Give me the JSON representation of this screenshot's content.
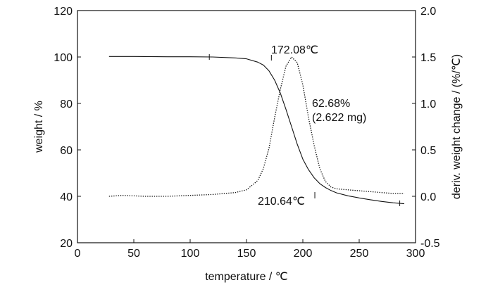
{
  "chart_data": {
    "type": "line",
    "xlabel": "temperature / ℃",
    "ylabel_left": "weight / %",
    "ylabel_right": "deriv. weight change / (%/℃)",
    "xlim": [
      0,
      300
    ],
    "ylim_left": [
      20,
      120
    ],
    "ylim_right": [
      -0.5,
      2.0
    ],
    "xticks": [
      0,
      50,
      100,
      150,
      200,
      250,
      300
    ],
    "yticks_left": [
      20,
      40,
      60,
      80,
      100,
      120
    ],
    "yticks_right": [
      "-0.5",
      "0.0",
      "0.5",
      "1.0",
      "1.5",
      "2.0"
    ],
    "grid": false,
    "series": [
      {
        "axis": "left",
        "style": "solid",
        "x": [
          28,
          50,
          80,
          100,
          120,
          140,
          150,
          160,
          165,
          170,
          175,
          180,
          185,
          190,
          195,
          200,
          205,
          210,
          215,
          220,
          225,
          230,
          240,
          250,
          260,
          270,
          280,
          290
        ],
        "y": [
          100.2,
          100.2,
          100.1,
          100.1,
          100.0,
          99.6,
          99.2,
          97.8,
          96.5,
          94.0,
          90.0,
          84.5,
          77.5,
          70.0,
          62.5,
          56.0,
          51.5,
          48.0,
          45.5,
          43.8,
          42.5,
          41.5,
          40.2,
          39.3,
          38.5,
          37.8,
          37.2,
          36.8
        ]
      },
      {
        "axis": "right",
        "style": "dotted",
        "x": [
          28,
          40,
          60,
          80,
          100,
          120,
          140,
          150,
          160,
          165,
          170,
          175,
          180,
          185,
          190,
          195,
          200,
          205,
          210,
          215,
          220,
          225,
          230,
          240,
          250,
          260,
          270,
          280,
          290
        ],
        "y": [
          0.0,
          0.01,
          0.0,
          0.0,
          0.01,
          0.02,
          0.04,
          0.07,
          0.17,
          0.3,
          0.52,
          0.85,
          1.15,
          1.4,
          1.5,
          1.44,
          1.2,
          0.85,
          0.55,
          0.3,
          0.16,
          0.1,
          0.08,
          0.07,
          0.06,
          0.05,
          0.04,
          0.03,
          0.03
        ]
      }
    ],
    "annotations": [
      {
        "id": "onset",
        "text": "172.08℃",
        "x": 172.08,
        "axis": "left"
      },
      {
        "id": "endset",
        "text": "210.64℃",
        "x": 210.64,
        "axis": "left"
      },
      {
        "id": "loss_pct",
        "text": "62.68%"
      },
      {
        "id": "loss_mg",
        "text": "(2.622 mg)"
      }
    ]
  }
}
